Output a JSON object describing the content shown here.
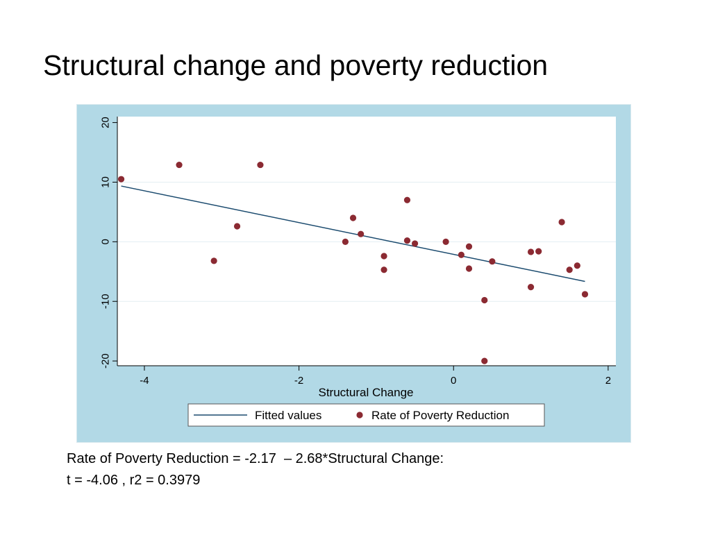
{
  "slide": {
    "title": "Structural change and poverty reduction",
    "equation_line1": "Rate of Poverty Reduction = -2.17  – 2.68*Structural Change:",
    "equation_line2": "t = -4.06 , r2 = 0.3979"
  },
  "colors": {
    "frame": "#b2d9e6",
    "plot_bg": "#ffffff",
    "grid": "#e3eef2",
    "fit_line": "#1a4a6e",
    "points": "#8b2a32"
  },
  "chart_data": {
    "type": "scatter",
    "xlabel": "Structural Change",
    "ylabel": "",
    "xlim": [
      -4.35,
      2.1
    ],
    "ylim": [
      -20.8,
      21
    ],
    "xticks": [
      -4,
      -2,
      0,
      2
    ],
    "yticks": [
      20,
      10,
      0,
      -10,
      -20
    ],
    "grid": true,
    "legend_position": "bottom",
    "series": [
      {
        "name": "Rate of Poverty Reduction",
        "kind": "scatter",
        "x": [
          -4.3,
          -3.55,
          -3.1,
          -2.8,
          -2.5,
          -1.4,
          -1.3,
          -1.2,
          -0.9,
          -0.9,
          -0.6,
          -0.6,
          -0.5,
          -0.1,
          0.1,
          0.2,
          0.2,
          0.4,
          0.4,
          0.5,
          1.0,
          1.0,
          1.1,
          1.4,
          1.5,
          1.6,
          1.7
        ],
        "y": [
          10.5,
          12.9,
          -3.2,
          2.6,
          12.9,
          0.0,
          4.0,
          1.3,
          -2.4,
          -4.7,
          7.0,
          0.2,
          -0.3,
          0.0,
          -2.2,
          -4.5,
          -0.8,
          -9.8,
          -20.0,
          -3.3,
          -1.7,
          -7.6,
          -1.6,
          3.3,
          -4.7,
          -4.0,
          -8.8
        ]
      },
      {
        "name": "Fitted values",
        "kind": "line",
        "x": [
          -4.3,
          1.7
        ],
        "y": [
          9.35,
          -6.65
        ]
      }
    ]
  }
}
